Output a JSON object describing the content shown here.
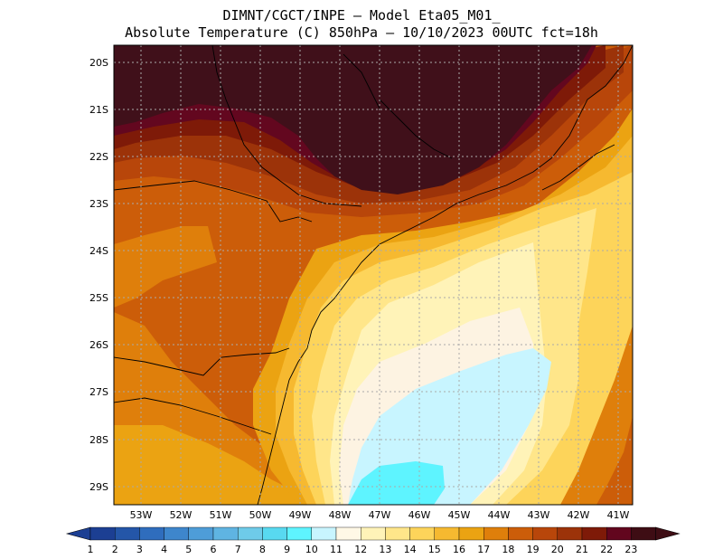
{
  "title": {
    "line1": "DIMNT/CGCT/INPE –  Model Eta05_M01_",
    "line2": "Absolute Temperature (C) 850hPa –  10/10/2023 00UTC fct=18h"
  },
  "axes": {
    "lat_labels": [
      "20S",
      "21S",
      "22S",
      "23S",
      "24S",
      "25S",
      "26S",
      "27S",
      "28S",
      "29S"
    ],
    "lon_labels": [
      "53W",
      "52W",
      "51W",
      "50W",
      "49W",
      "48W",
      "47W",
      "46W",
      "45W",
      "44W",
      "43W",
      "42W",
      "41W"
    ]
  },
  "colorbar": {
    "labels": [
      "1",
      "2",
      "3",
      "4",
      "5",
      "6",
      "7",
      "8",
      "9",
      "10",
      "11",
      "12",
      "13",
      "14",
      "15",
      "16",
      "17",
      "18",
      "19",
      "20",
      "21",
      "22",
      "23"
    ],
    "colors": [
      "#1c3f93",
      "#2456a8",
      "#2f6dbd",
      "#3e86cc",
      "#4e9dd8",
      "#5fb4e2",
      "#6ecbe9",
      "#58d9f0",
      "#5ef4ff",
      "#c8f5ff",
      "#fff8e6",
      "#fff3b8",
      "#ffe68a",
      "#fdd45a",
      "#f6b930",
      "#eba312",
      "#df7f0b",
      "#cc5d09",
      "#b8460a",
      "#9c3309",
      "#7e1a08",
      "#62061e",
      "#3e0d14"
    ]
  },
  "map_colors": {
    "t24": "#40101a",
    "t23": "#63071f",
    "t22": "#7e1a08",
    "t21": "#9c3309",
    "t20": "#b8460a",
    "t19": "#cc5d09",
    "t18": "#df7f0b",
    "t17": "#eba312",
    "t16": "#f6b930",
    "t15": "#fdd45a",
    "t14": "#ffe68a",
    "t13": "#fff3b8",
    "t12": "#fdf3e2",
    "t11": "#c8f5ff",
    "t10": "#5ef4ff"
  }
}
